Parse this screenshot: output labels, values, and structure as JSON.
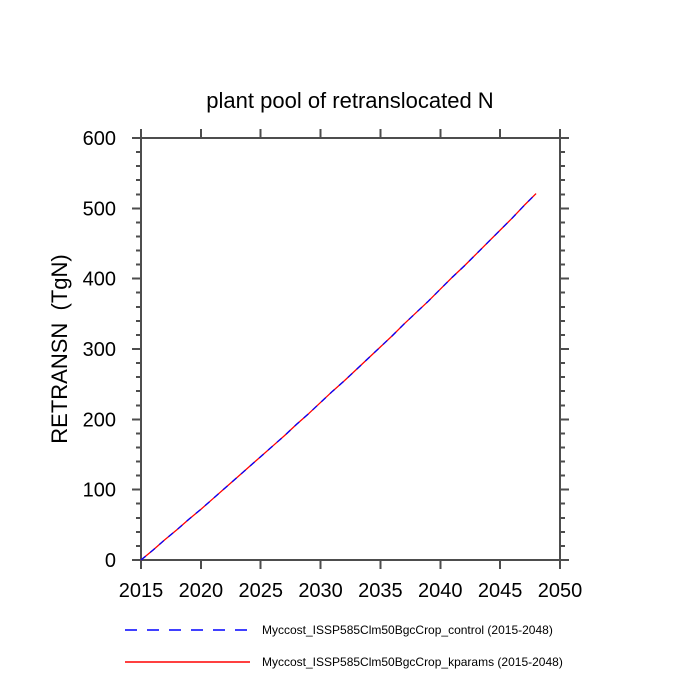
{
  "chart_data": {
    "type": "line",
    "title": "plant pool of retranslocated N",
    "xlabel": "",
    "ylabel": "RETRANSN  (TgN)",
    "xlim": [
      2015,
      2050
    ],
    "ylim": [
      0,
      600
    ],
    "xticks": [
      2015,
      2020,
      2025,
      2030,
      2035,
      2040,
      2045,
      2050
    ],
    "yticks": [
      0,
      100,
      200,
      300,
      400,
      500,
      600
    ],
    "y_minor_step": 20,
    "grid": false,
    "legend_position": "bottom",
    "axis_color": "#4d4d4d",
    "x": [
      2015,
      2016,
      2017,
      2018,
      2019,
      2020,
      2021,
      2022,
      2023,
      2024,
      2025,
      2026,
      2027,
      2028,
      2029,
      2030,
      2031,
      2032,
      2033,
      2034,
      2035,
      2036,
      2037,
      2038,
      2039,
      2040,
      2041,
      2042,
      2043,
      2044,
      2045,
      2046,
      2047,
      2048
    ],
    "series": [
      {
        "name": "Myccost_ISSP585Clm50BgcCrop_control (2015-2048)",
        "color": "#0000ff",
        "style": "dashed",
        "values": [
          0,
          14,
          29,
          43,
          58,
          72,
          87,
          102,
          117,
          132,
          147,
          162,
          177,
          193,
          208,
          224,
          240,
          255,
          271,
          287,
          303,
          319,
          336,
          352,
          368,
          385,
          402,
          418,
          435,
          452,
          469,
          486,
          504,
          521
        ]
      },
      {
        "name": "Myccost_ISSP585Clm50BgcCrop_kparams (2015-2048)",
        "color": "#ff0000",
        "style": "solid",
        "values": [
          0,
          14,
          29,
          43,
          58,
          72,
          87,
          102,
          117,
          132,
          147,
          162,
          177,
          193,
          208,
          224,
          240,
          255,
          271,
          287,
          303,
          319,
          336,
          352,
          368,
          385,
          402,
          418,
          435,
          452,
          469,
          486,
          504,
          521
        ]
      }
    ]
  }
}
